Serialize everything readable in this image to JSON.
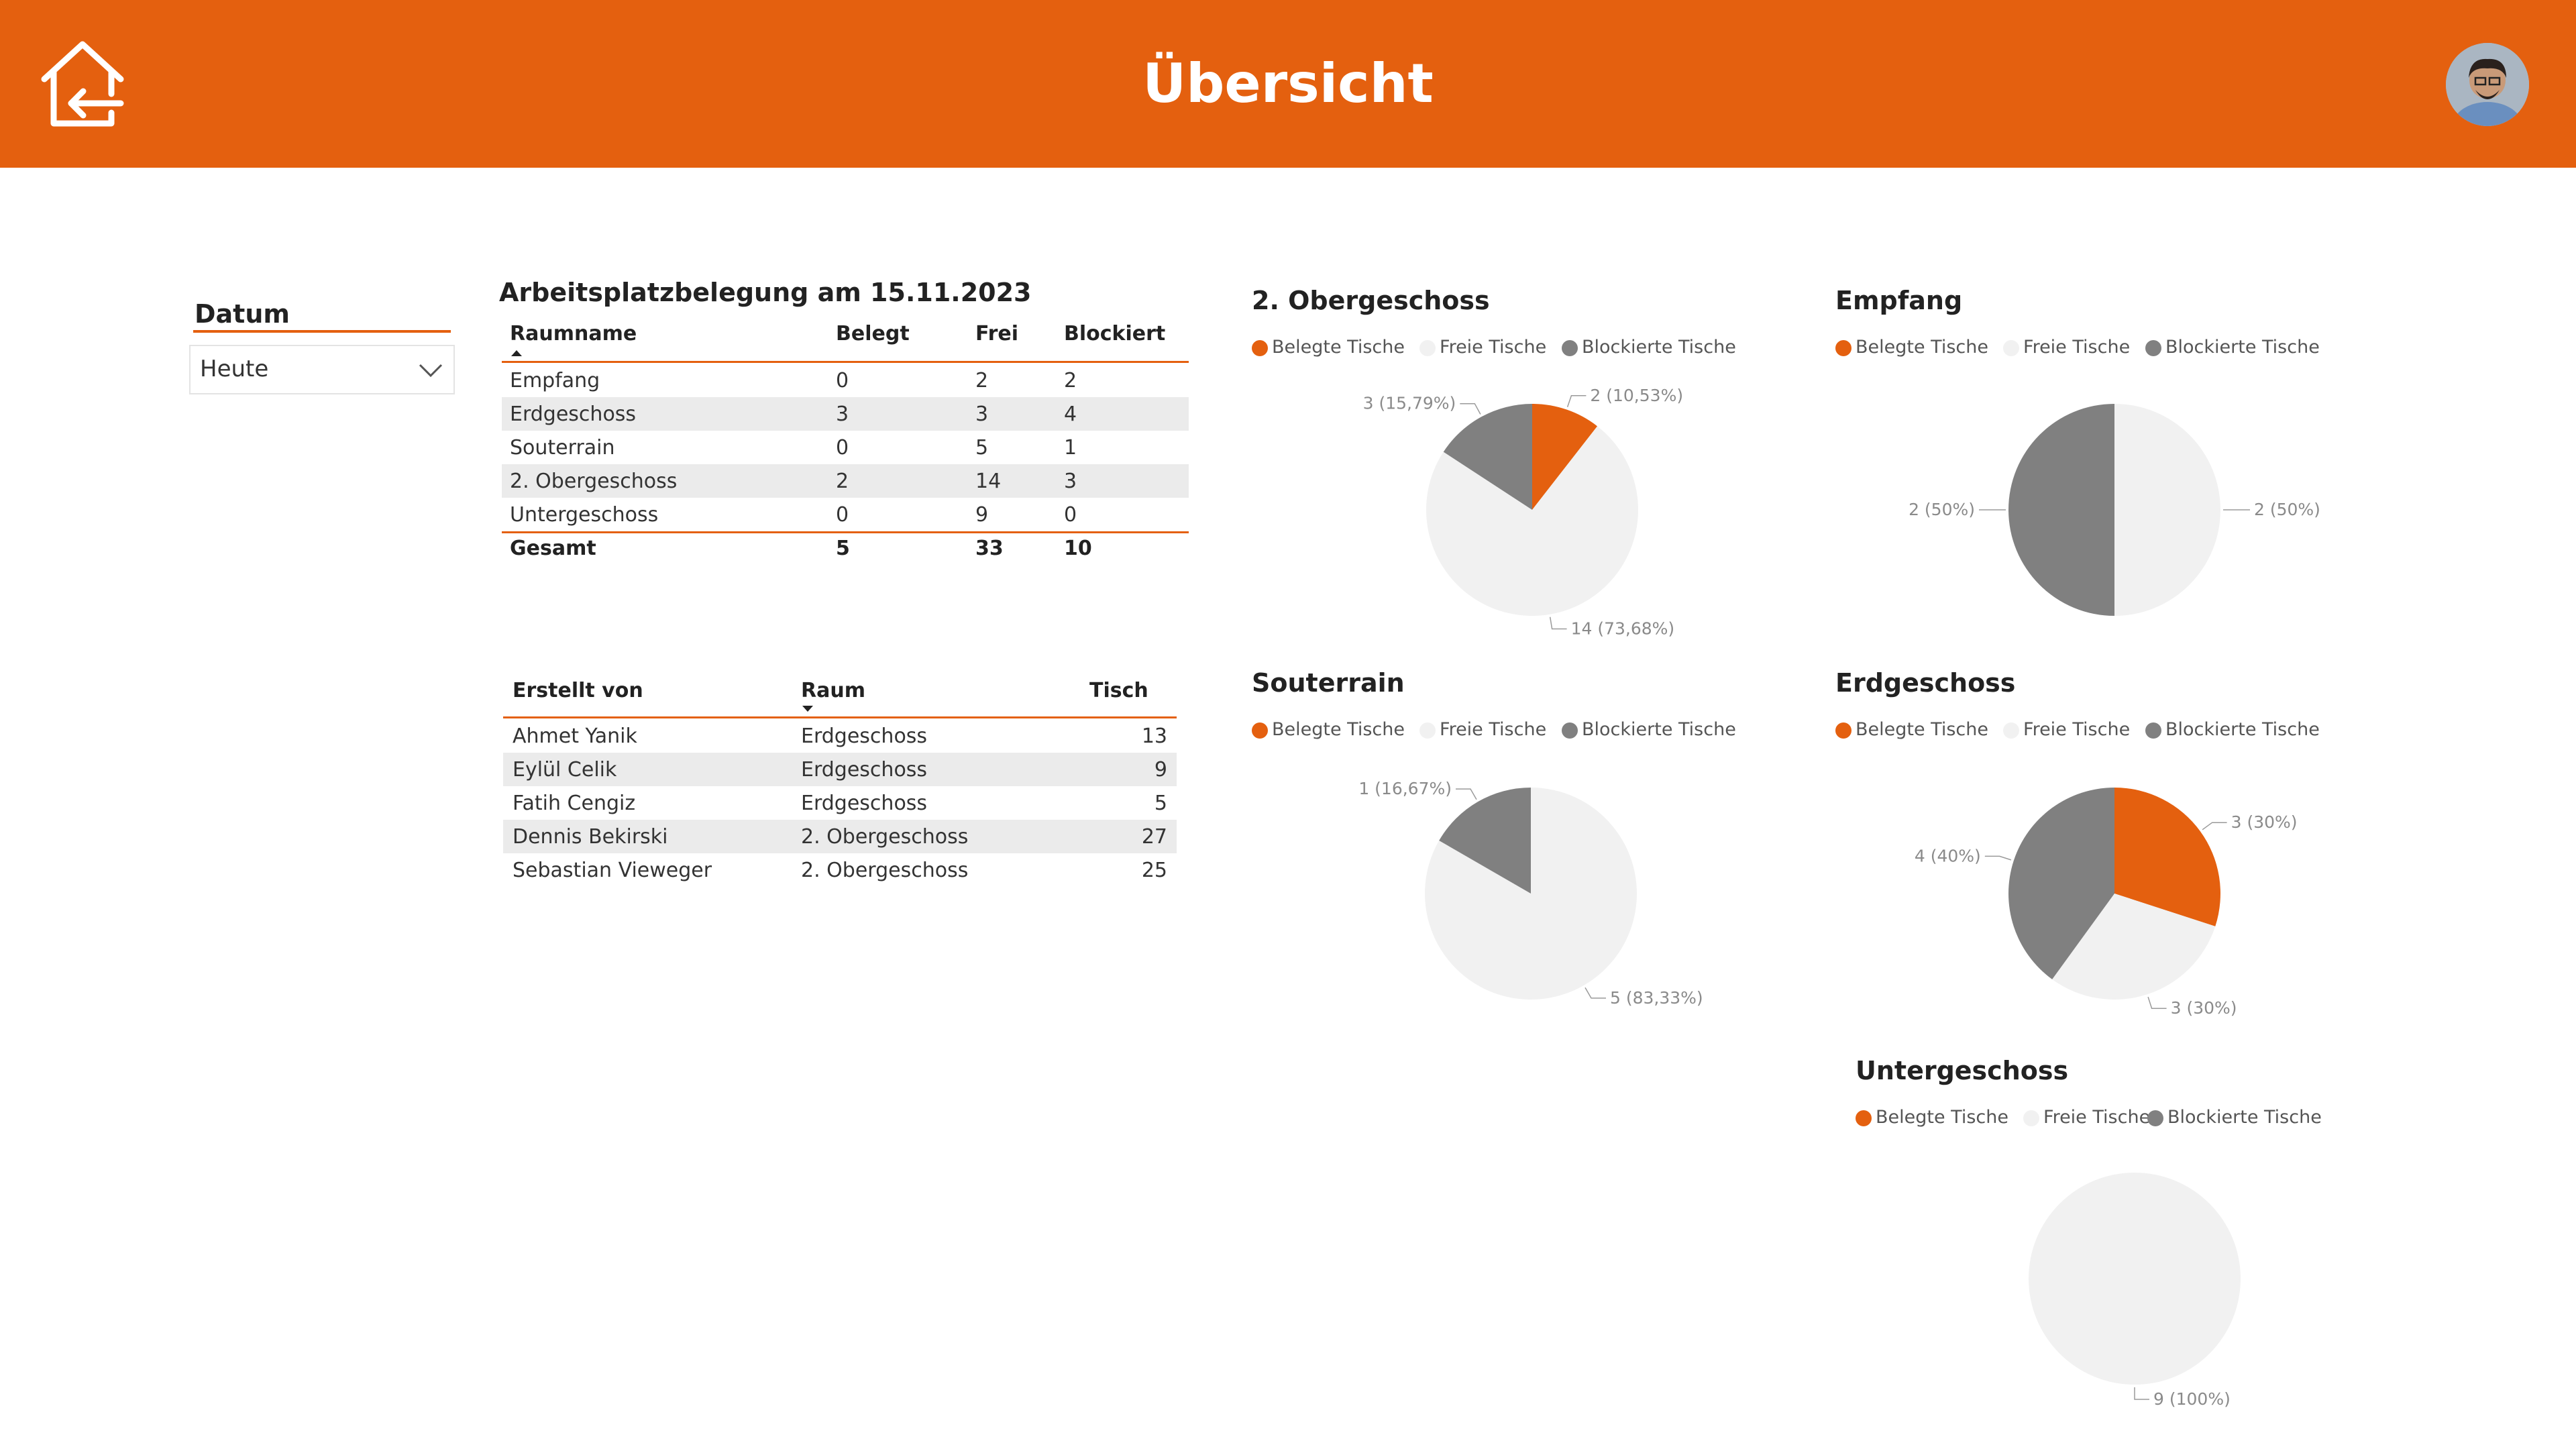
{
  "header": {
    "title": "Übersicht"
  },
  "datum": {
    "label": "Datum",
    "value": "Heute"
  },
  "occupancy_table": {
    "title": "Arbeitsplatzbelegung am 15.11.2023",
    "columns": [
      "Raumname",
      "Belegt",
      "Frei",
      "Blockiert"
    ],
    "rows": [
      [
        "Empfang",
        "0",
        "2",
        "2"
      ],
      [
        "Erdgeschoss",
        "3",
        "3",
        "4"
      ],
      [
        "Souterrain",
        "0",
        "5",
        "1"
      ],
      [
        "2. Obergeschoss",
        "2",
        "14",
        "3"
      ],
      [
        "Untergeschoss",
        "0",
        "9",
        "0"
      ]
    ],
    "total": [
      "Gesamt",
      "5",
      "33",
      "10"
    ]
  },
  "bookings_table": {
    "columns": [
      "Erstellt von",
      "Raum",
      "Tisch"
    ],
    "rows": [
      [
        "Ahmet Yanik",
        "Erdgeschoss",
        "13"
      ],
      [
        "Eylül Celik",
        "Erdgeschoss",
        "9"
      ],
      [
        "Fatih Cengiz",
        "Erdgeschoss",
        "5"
      ],
      [
        "Dennis Bekirski",
        "2. Obergeschoss",
        "27"
      ],
      [
        "Sebastian Vieweger",
        "2. Obergeschoss",
        "25"
      ]
    ]
  },
  "colors": {
    "accent": "#e4600f",
    "belegt": "#e4600f",
    "frei": "#f1f1f1",
    "blockiert": "#808080"
  },
  "chart_data": [
    {
      "type": "pie",
      "title": "2. Obergeschoss",
      "legend": [
        "Belegte Tische",
        "Freie Tische",
        "Blockierte Tische"
      ],
      "categories": [
        "Belegte Tische",
        "Freie Tische",
        "Blockierte Tische"
      ],
      "values": [
        2,
        14,
        3
      ],
      "labels": [
        "2 (10,53%)",
        "14 (73,68%)",
        "3 (15,79%)"
      ]
    },
    {
      "type": "pie",
      "title": "Empfang",
      "legend": [
        "Belegte Tische",
        "Freie Tische",
        "Blockierte Tische"
      ],
      "categories": [
        "Belegte Tische",
        "Freie Tische",
        "Blockierte Tische"
      ],
      "values": [
        0,
        2,
        2
      ],
      "labels": [
        "",
        "2 (50%)",
        "2 (50%)"
      ]
    },
    {
      "type": "pie",
      "title": "Souterrain",
      "legend": [
        "Belegte Tische",
        "Freie Tische",
        "Blockierte Tische"
      ],
      "categories": [
        "Belegte Tische",
        "Freie Tische",
        "Blockierte Tische"
      ],
      "values": [
        0,
        5,
        1
      ],
      "labels": [
        "",
        "5 (83,33%)",
        "1 (16,67%)"
      ]
    },
    {
      "type": "pie",
      "title": "Erdgeschoss",
      "legend": [
        "Belegte Tische",
        "Freie Tische",
        "Blockierte Tische"
      ],
      "categories": [
        "Belegte Tische",
        "Freie Tische",
        "Blockierte Tische"
      ],
      "values": [
        3,
        3,
        4
      ],
      "labels": [
        "3 (30%)",
        "3 (30%)",
        "4 (40%)"
      ]
    },
    {
      "type": "pie",
      "title": "Untergeschoss",
      "legend": [
        "Belegte Tische",
        "Freie Tische",
        "Blockierte Tische"
      ],
      "categories": [
        "Belegte Tische",
        "Freie Tische",
        "Blockierte Tische"
      ],
      "values": [
        0,
        9,
        0
      ],
      "labels": [
        "",
        "9 (100%)",
        ""
      ]
    }
  ]
}
